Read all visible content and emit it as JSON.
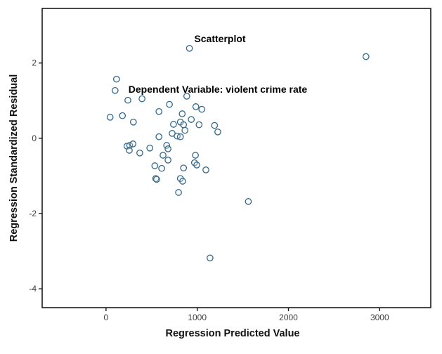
{
  "figure": {
    "background": "#ffffff",
    "axis_color": "#1a1a1a",
    "marker_color": "#35688a"
  },
  "chart_data": {
    "type": "scatter",
    "title": "Scatterplot",
    "subtitle": "Dependent Variable: violent crime rate",
    "xlabel": "Regression Predicted Value",
    "ylabel": "Regression Standardized Residual",
    "x_ticks": [
      0,
      1000,
      2000,
      3000
    ],
    "y_ticks": [
      2,
      0,
      -2,
      -4
    ],
    "xlim": [
      -700,
      3560
    ],
    "ylim": [
      -4.5,
      3.45
    ],
    "grid": false,
    "legend": "none",
    "marker": {
      "shape": "open-circle",
      "radius_px": 4.2,
      "stroke": "#35688a"
    },
    "points": [
      [
        915,
        2.39
      ],
      [
        2850,
        2.17
      ],
      [
        115,
        1.57
      ],
      [
        100,
        1.27
      ],
      [
        240,
        1.01
      ],
      [
        395,
        1.05
      ],
      [
        695,
        0.9
      ],
      [
        885,
        1.12
      ],
      [
        985,
        0.84
      ],
      [
        1050,
        0.77
      ],
      [
        835,
        0.65
      ],
      [
        935,
        0.5
      ],
      [
        1020,
        0.36
      ],
      [
        740,
        0.37
      ],
      [
        815,
        0.43
      ],
      [
        850,
        0.36
      ],
      [
        865,
        0.21
      ],
      [
        45,
        0.56
      ],
      [
        180,
        0.6
      ],
      [
        300,
        0.43
      ],
      [
        580,
        0.71
      ],
      [
        725,
        0.13
      ],
      [
        780,
        0.06
      ],
      [
        815,
        0.04
      ],
      [
        580,
        0.04
      ],
      [
        230,
        -0.21
      ],
      [
        260,
        -0.19
      ],
      [
        295,
        -0.15
      ],
      [
        255,
        -0.32
      ],
      [
        370,
        -0.39
      ],
      [
        480,
        -0.26
      ],
      [
        665,
        -0.19
      ],
      [
        680,
        -0.28
      ],
      [
        625,
        -0.45
      ],
      [
        680,
        -0.58
      ],
      [
        980,
        -0.45
      ],
      [
        535,
        -0.73
      ],
      [
        610,
        -0.8
      ],
      [
        850,
        -0.79
      ],
      [
        970,
        -0.65
      ],
      [
        995,
        -0.71
      ],
      [
        1095,
        -0.84
      ],
      [
        545,
        -1.07
      ],
      [
        555,
        -1.09
      ],
      [
        815,
        -1.07
      ],
      [
        840,
        -1.14
      ],
      [
        795,
        -1.44
      ],
      [
        1560,
        -1.68
      ],
      [
        1140,
        -3.18
      ],
      [
        1190,
        0.34
      ],
      [
        1225,
        0.17
      ]
    ]
  }
}
